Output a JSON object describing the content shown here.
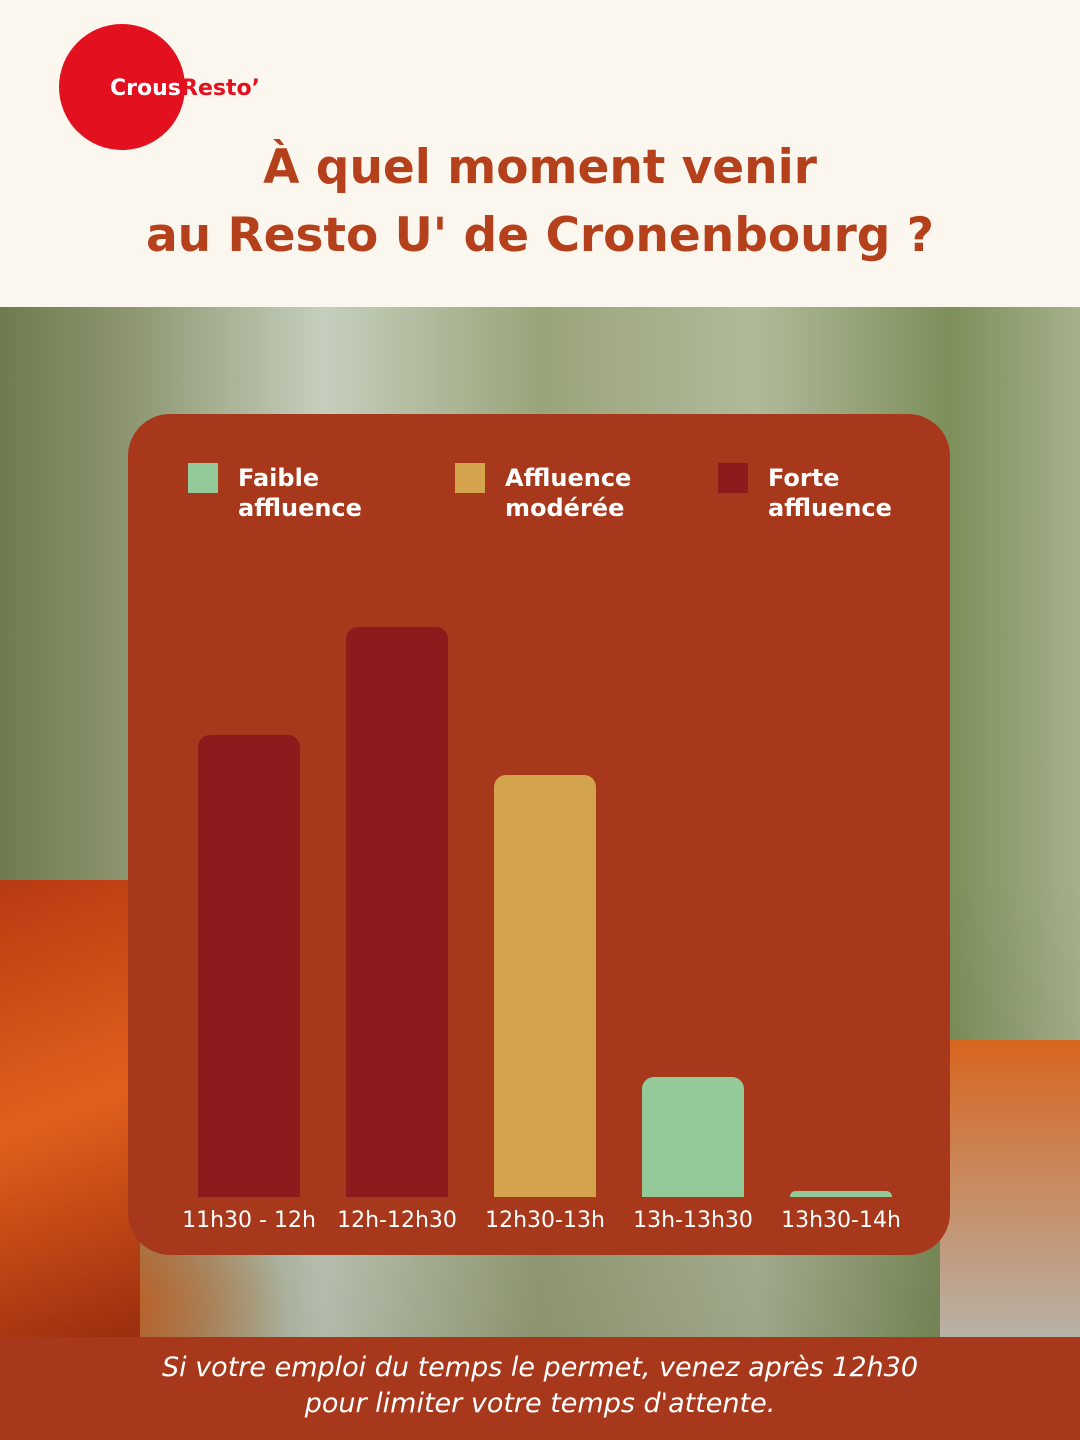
{
  "logo": {
    "part1": "Crous",
    "part2": "Resto’"
  },
  "title_lines": [
    "À quel moment venir",
    "au Resto U' de Cronenbourg ?"
  ],
  "chart_data": {
    "type": "bar",
    "legend": [
      {
        "label": "Faible affluence",
        "color": "#94c99a"
      },
      {
        "label": "Affluence modérée",
        "color": "#d4a44c"
      },
      {
        "label": "Forte affluence",
        "color": "#8e1a1e"
      }
    ],
    "categories": [
      "11h30 - 12h",
      "12h-12h30",
      "12h30-13h",
      "13h-13h30",
      "13h30-14h"
    ],
    "values": [
      81,
      100,
      74,
      21,
      1
    ],
    "colors": [
      "#8e1a1e",
      "#8e1a1e",
      "#d4a44c",
      "#94c99a",
      "#94c99a"
    ],
    "ylim": [
      0,
      100
    ]
  },
  "footer_lines": [
    "Si votre emploi du temps le permet, venez après 12h30",
    "pour limiter votre temps d'attente."
  ]
}
